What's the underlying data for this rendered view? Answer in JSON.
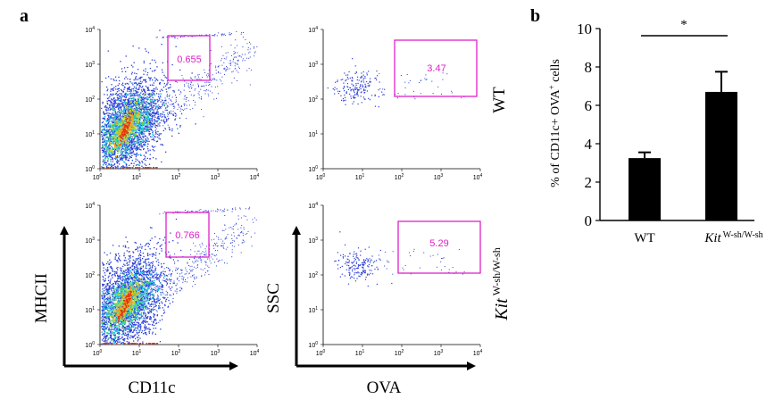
{
  "panel_a": {
    "label": "a",
    "axis_label_x_left": "CD11c",
    "axis_label_y_left": "MHCII",
    "axis_label_x_right": "OVA",
    "axis_label_y_right": "SSC",
    "row_label_wt": "WT",
    "row_label_kit_main": "Kit",
    "row_label_kit_sup": "W-sh/W-sh",
    "plots": [
      {
        "gate_value": "0.655"
      },
      {
        "gate_value": "3.47"
      },
      {
        "gate_value": "0.766"
      },
      {
        "gate_value": "5.29"
      }
    ],
    "log_ticks": [
      "10",
      "10",
      "10",
      "10",
      "10"
    ],
    "log_exponents": [
      "0",
      "1",
      "2",
      "3",
      "4"
    ],
    "colors": {
      "gate": "#e020c8",
      "dots": "#2a3dd8"
    }
  },
  "panel_b": {
    "label": "b",
    "significance": "*",
    "colors": {
      "bar": "#000000"
    }
  },
  "chart_data": {
    "type": "bar",
    "title": "",
    "xlabel": "",
    "ylabel": "% of CD11c+ OVA+ cells",
    "ylabel_main": "% of CD11c+ OVA",
    "ylabel_sup": "+",
    "ylabel_tail": " cells",
    "categories": [
      "WT",
      "Kit"
    ],
    "category_sups": [
      "",
      "W-sh/W-sh"
    ],
    "values": [
      3.25,
      6.7
    ],
    "errors": [
      0.3,
      1.05
    ],
    "ylim": [
      0,
      10
    ],
    "yticks": [
      "0",
      "2",
      "4",
      "6",
      "8",
      "10"
    ],
    "grid": false
  }
}
